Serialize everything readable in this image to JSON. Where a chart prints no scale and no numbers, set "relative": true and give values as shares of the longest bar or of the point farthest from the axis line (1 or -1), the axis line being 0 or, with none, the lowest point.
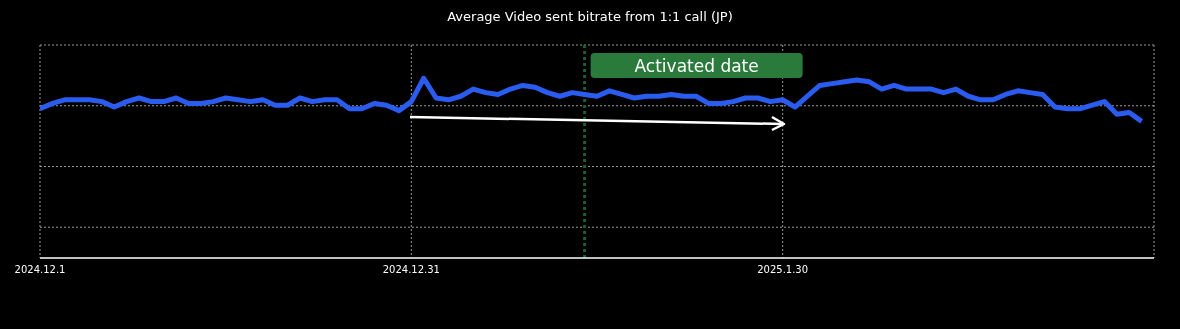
{
  "chart_data": {
    "type": "line",
    "title": "Average Video sent bitrate from 1:1 call (JP)",
    "relative": true,
    "grid": true,
    "marker": "none",
    "line_style": "solid",
    "xlim": [
      "2024-12-01",
      "2025-03-01"
    ],
    "xticks": [
      {
        "value": "2024-12-01",
        "label": "2024.12.1"
      },
      {
        "value": "2024-12-31",
        "label": "2024.12.31"
      },
      {
        "value": "2025-01-30",
        "label": "2025.1.30"
      }
    ],
    "ref_lines": [
      {
        "axis": "x",
        "value": "2025-01-14",
        "label": "Activated date",
        "color": "#1f5c34",
        "line_style": "dotted"
      }
    ],
    "series": [
      {
        "color": "#2a5cf0",
        "x": [
          "2024-12-01",
          "2024-12-02",
          "2024-12-03",
          "2024-12-04",
          "2024-12-05",
          "2024-12-06",
          "2024-12-07",
          "2024-12-08",
          "2024-12-09",
          "2024-12-10",
          "2024-12-11",
          "2024-12-12",
          "2024-12-13",
          "2024-12-14",
          "2024-12-15",
          "2024-12-16",
          "2024-12-17",
          "2024-12-18",
          "2024-12-19",
          "2024-12-20",
          "2024-12-21",
          "2024-12-22",
          "2024-12-23",
          "2024-12-24",
          "2024-12-25",
          "2024-12-26",
          "2024-12-27",
          "2024-12-28",
          "2024-12-29",
          "2024-12-30",
          "2024-12-31",
          "2025-01-01",
          "2025-01-02",
          "2025-01-03",
          "2025-01-04",
          "2025-01-05",
          "2025-01-06",
          "2025-01-07",
          "2025-01-08",
          "2025-01-09",
          "2025-01-10",
          "2025-01-11",
          "2025-01-12",
          "2025-01-13",
          "2025-01-14",
          "2025-01-15",
          "2025-01-16",
          "2025-01-17",
          "2025-01-18",
          "2025-01-19",
          "2025-01-20",
          "2025-01-21",
          "2025-01-22",
          "2025-01-23",
          "2025-01-24",
          "2025-01-25",
          "2025-01-26",
          "2025-01-27",
          "2025-01-28",
          "2025-01-29",
          "2025-01-30",
          "2025-01-31",
          "2025-02-01",
          "2025-02-02",
          "2025-02-03",
          "2025-02-04",
          "2025-02-05",
          "2025-02-06",
          "2025-02-07",
          "2025-02-08",
          "2025-02-09",
          "2025-02-10",
          "2025-02-11",
          "2025-02-12",
          "2025-02-13",
          "2025-02-14",
          "2025-02-15",
          "2025-02-16",
          "2025-02-17",
          "2025-02-18",
          "2025-02-19",
          "2025-02-20",
          "2025-02-21",
          "2025-02-22",
          "2025-02-23",
          "2025-02-24",
          "2025-02-25",
          "2025-02-26",
          "2025-02-27",
          "2025-02-28"
        ],
        "values": [
          0.83,
          0.86,
          0.88,
          0.88,
          0.88,
          0.87,
          0.84,
          0.87,
          0.89,
          0.87,
          0.87,
          0.89,
          0.86,
          0.86,
          0.87,
          0.89,
          0.88,
          0.87,
          0.88,
          0.85,
          0.85,
          0.89,
          0.87,
          0.88,
          0.88,
          0.83,
          0.83,
          0.86,
          0.85,
          0.82,
          0.87,
          1,
          0.89,
          0.88,
          0.9,
          0.94,
          0.92,
          0.91,
          0.94,
          0.96,
          0.95,
          0.92,
          0.9,
          0.92,
          0.91,
          0.9,
          0.93,
          0.91,
          0.89,
          0.9,
          0.9,
          0.91,
          0.9,
          0.9,
          0.86,
          0.86,
          0.87,
          0.89,
          0.89,
          0.87,
          0.88,
          0.84,
          0.9,
          0.96,
          0.97,
          0.98,
          0.99,
          0.98,
          0.94,
          0.96,
          0.94,
          0.94,
          0.94,
          0.92,
          0.94,
          0.9,
          0.88,
          0.88,
          0.91,
          0.93,
          0.92,
          0.91,
          0.84,
          0.83,
          0.83,
          0.85,
          0.87,
          0.8,
          0.81,
          0.76
        ]
      }
    ]
  }
}
